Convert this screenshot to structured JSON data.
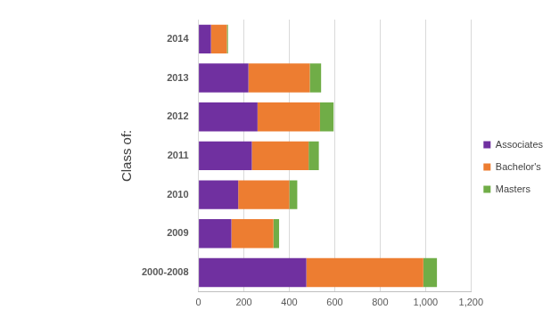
{
  "chart_data": {
    "type": "bar",
    "orientation": "horizontal",
    "stacked": true,
    "ylabel": "Class of:",
    "categories": [
      "2014",
      "2013",
      "2012",
      "2011",
      "2010",
      "2009",
      "2000-2008"
    ],
    "series": [
      {
        "name": "Associates",
        "color": "#7030a0",
        "values": [
          55,
          220,
          260,
          235,
          175,
          145,
          475
        ]
      },
      {
        "name": "Bachelor's",
        "color": "#ed7d31",
        "values": [
          70,
          270,
          275,
          250,
          225,
          185,
          515
        ]
      },
      {
        "name": "Masters",
        "color": "#70ad47",
        "values": [
          5,
          50,
          60,
          45,
          35,
          25,
          60
        ]
      }
    ],
    "xlim": [
      0,
      1200
    ],
    "xticks": [
      0,
      200,
      400,
      600,
      800,
      1000,
      1200
    ],
    "grid": true,
    "legend": "right"
  }
}
